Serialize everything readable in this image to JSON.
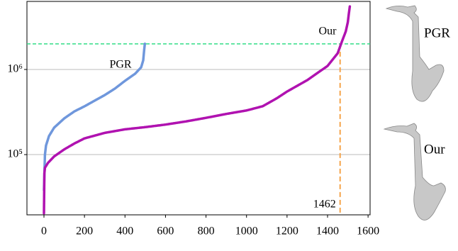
{
  "chart_data": {
    "type": "line",
    "log_y": true,
    "grid": true,
    "xlim": [
      -84,
      1610
    ],
    "xticks": [
      0,
      200,
      400,
      600,
      800,
      1000,
      1200,
      1400,
      1600
    ],
    "ylim": [
      19600,
      6300000
    ],
    "yticks": [
      {
        "value": 100000,
        "label": "10⁵"
      },
      {
        "value": 1000000,
        "label": "10⁶"
      }
    ],
    "threshold_y": 2000000,
    "threshold_y_color": "#33dd88",
    "threshold_x": 1462,
    "threshold_x_color": "#f5a44a",
    "series": [
      {
        "name": "PGR",
        "color": "#6f97dc",
        "x": [
          0,
          5,
          10,
          25,
          50,
          100,
          150,
          200,
          250,
          300,
          350,
          400,
          450,
          480,
          490,
          495,
          498
        ],
        "values": [
          38300,
          100000,
          128000,
          165000,
          207000,
          266000,
          322000,
          369000,
          430000,
          500000,
          596000,
          736000,
          890000,
          1060000,
          1280000,
          1710000,
          2000000
        ]
      },
      {
        "name": "Our",
        "color": "#b012b0",
        "x": [
          0,
          2,
          5,
          20,
          50,
          100,
          150,
          200,
          300,
          400,
          500,
          600,
          700,
          800,
          900,
          1000,
          1080,
          1150,
          1200,
          1300,
          1400,
          1450,
          1470,
          1490,
          1500,
          1505,
          1510
        ],
        "values": [
          20500,
          60000,
          70000,
          80000,
          95000,
          115000,
          135000,
          155000,
          180000,
          198000,
          210000,
          225000,
          245000,
          270000,
          300000,
          330000,
          370000,
          460000,
          550000,
          750000,
          1100000,
          1550000,
          2100000,
          2800000,
          3600000,
          4500000,
          5500000
        ]
      }
    ]
  }
}
